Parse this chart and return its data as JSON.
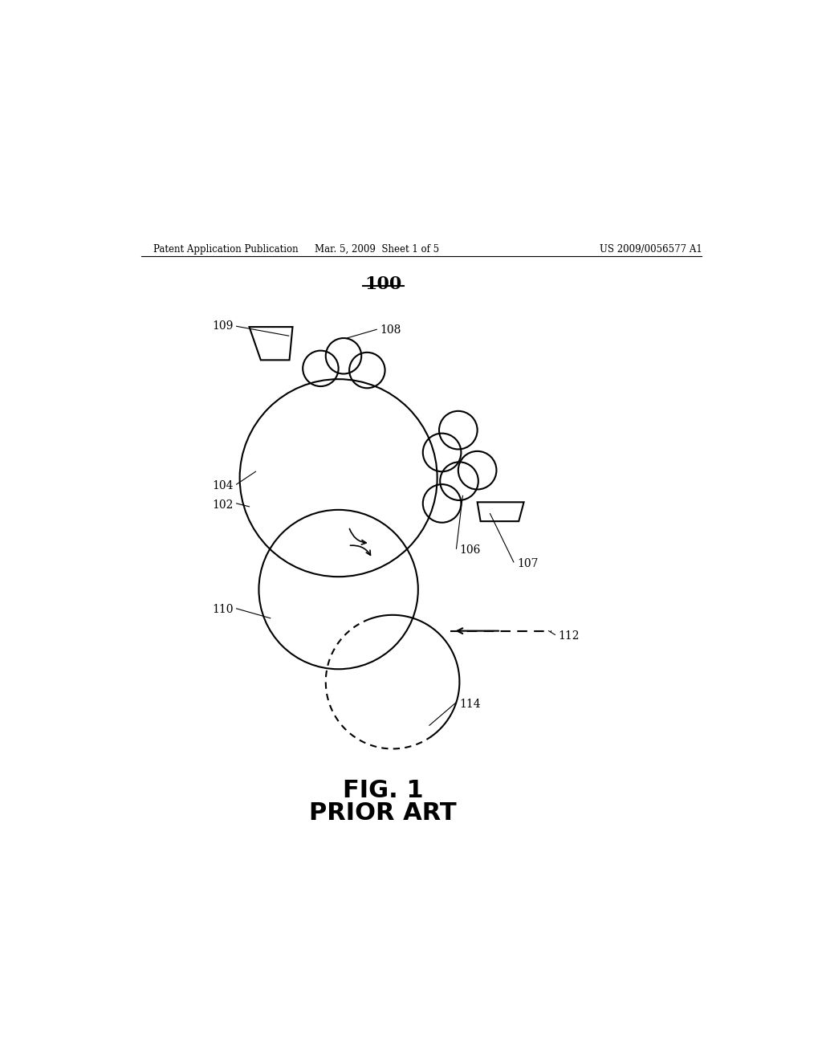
{
  "bg_color": "#ffffff",
  "header_left": "Patent Application Publication",
  "header_mid": "Mar. 5, 2009  Sheet 1 of 5",
  "header_right": "US 2009/0056577 A1",
  "fig_label": "FIG. 1",
  "fig_sublabel": "PRIOR ART",
  "diagram_label": "100",
  "label_102": "102",
  "label_104": "104",
  "label_106": "106",
  "label_107": "107",
  "label_108": "108",
  "label_109": "109",
  "label_110": "110",
  "label_112": "112",
  "label_114": "114",
  "linewidth": 1.5
}
